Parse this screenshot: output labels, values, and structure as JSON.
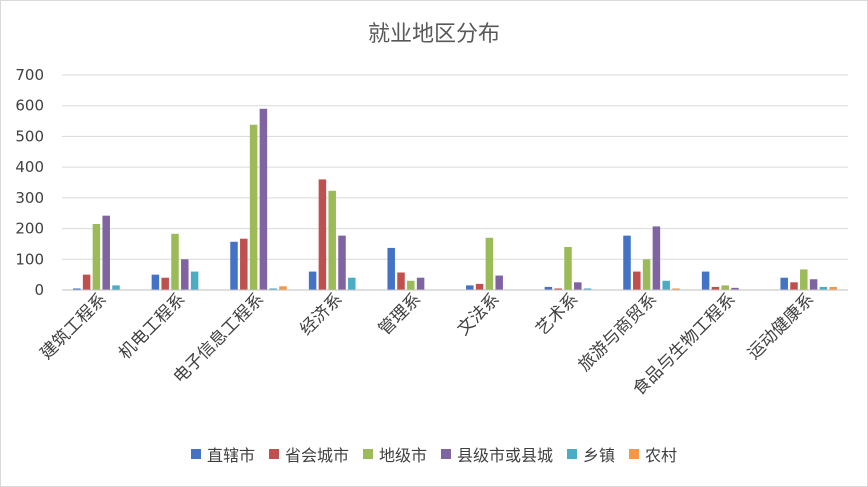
{
  "chart_data": {
    "type": "bar",
    "title": "就业地区分布",
    "categories": [
      "建筑工程系",
      "机电工程系",
      "电子信息工程系",
      "经济系",
      "管理系",
      "文法系",
      "艺术系",
      "旅游与商贸系",
      "食品与生物工程系",
      "运动健康系"
    ],
    "series": [
      {
        "name": "直辖市",
        "color": "#4472C4",
        "values": [
          5,
          50,
          157,
          60,
          137,
          15,
          10,
          177,
          60,
          40
        ]
      },
      {
        "name": "省会城市",
        "color": "#C0504D",
        "values": [
          50,
          40,
          167,
          360,
          57,
          20,
          5,
          60,
          10,
          25
        ]
      },
      {
        "name": "地级市",
        "color": "#9BBB59",
        "values": [
          215,
          183,
          538,
          323,
          30,
          170,
          140,
          100,
          15,
          67
        ]
      },
      {
        "name": "县级市或县城",
        "color": "#8064A2",
        "values": [
          242,
          100,
          590,
          177,
          40,
          47,
          25,
          207,
          7,
          35
        ]
      },
      {
        "name": "乡镇",
        "color": "#4BACC6",
        "values": [
          15,
          60,
          5,
          40,
          0,
          0,
          5,
          30,
          0,
          10
        ]
      },
      {
        "name": "农村",
        "color": "#F79646",
        "values": [
          0,
          0,
          12,
          0,
          0,
          0,
          0,
          5,
          0,
          10
        ]
      }
    ],
    "yticks": [
      0,
      100,
      200,
      300,
      400,
      500,
      600,
      700
    ],
    "ylim": [
      0,
      700
    ],
    "grid": true,
    "legend": "bottom"
  }
}
